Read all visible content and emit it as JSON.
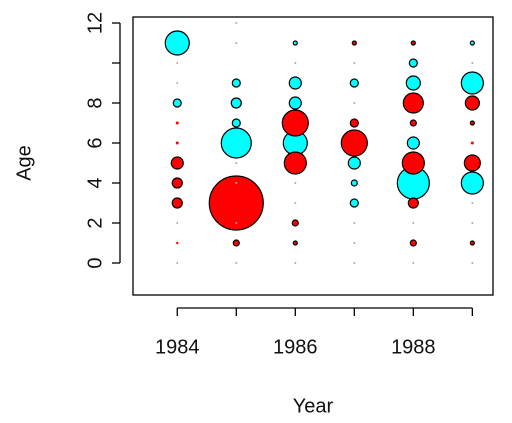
{
  "chart_data": {
    "type": "bubble",
    "xlabel": "Year",
    "ylabel": "Age",
    "xlim": [
      1983.25,
      1989.35
    ],
    "ylim": [
      -1.6,
      12.3
    ],
    "xticks": [
      1984,
      1986,
      1988
    ],
    "xtick_marks": [
      1984,
      1985,
      1986,
      1987,
      1988,
      1989
    ],
    "yticks": [
      0,
      2,
      4,
      6,
      8,
      {
        "value": 10,
        "label": null
      },
      12
    ],
    "series": [
      {
        "color": "#00ffff",
        "x": [
          1984,
          1984,
          1985,
          1985,
          1985,
          1985,
          1986,
          1986,
          1986,
          1986,
          1987,
          1987,
          1987,
          1987,
          1988,
          1988,
          1988,
          1988,
          1989,
          1989,
          1989
        ],
        "y": [
          11,
          8,
          9,
          8,
          7,
          6,
          11,
          9,
          8,
          6,
          9,
          5,
          4,
          3,
          10,
          9,
          6,
          4,
          11,
          9,
          4
        ],
        "sizes": [
          12,
          4,
          4,
          5,
          4,
          15,
          2,
          6,
          6,
          12,
          4,
          6,
          3,
          4,
          4,
          7,
          6,
          16,
          2,
          11,
          11
        ]
      },
      {
        "color": "#ff0000",
        "x": [
          1984,
          1984,
          1984,
          1984,
          1984,
          1984,
          1985,
          1985,
          1986,
          1986,
          1986,
          1986,
          1987,
          1987,
          1987,
          1988,
          1988,
          1988,
          1988,
          1988,
          1988,
          1989,
          1989,
          1989,
          1989,
          1989
        ],
        "y": [
          5,
          4,
          3,
          7,
          6,
          1,
          3,
          1,
          7,
          5,
          2,
          1,
          11,
          7,
          6,
          11,
          8,
          7,
          5,
          3,
          1,
          8,
          7,
          5,
          6,
          1
        ],
        "sizes": [
          6,
          5,
          5,
          1.5,
          1.5,
          1.2,
          27,
          3,
          13,
          11,
          3,
          2,
          2,
          4,
          13,
          2,
          10,
          3,
          11,
          5,
          3,
          7,
          2,
          8,
          1.5,
          2
        ]
      },
      {
        "color": "#aaaaaa",
        "x": [
          1984,
          1984,
          1984,
          1984,
          1985,
          1985,
          1985,
          1985,
          1985,
          1985,
          1986,
          1986,
          1986,
          1986,
          1987,
          1987,
          1987,
          1987,
          1987,
          1988,
          1988,
          1989,
          1989,
          1989,
          1989
        ],
        "y": [
          0,
          2,
          9,
          10,
          12,
          11,
          0,
          2,
          5,
          4,
          0,
          3,
          4,
          10,
          0,
          1,
          2,
          8,
          10,
          0,
          2,
          0,
          2,
          3,
          10
        ],
        "sizes": [
          1,
          1,
          1,
          1,
          1,
          1,
          1,
          1,
          1,
          1,
          1,
          1,
          1,
          1,
          1,
          1,
          1,
          1,
          1,
          1,
          1,
          1,
          1,
          1,
          1
        ]
      }
    ]
  }
}
